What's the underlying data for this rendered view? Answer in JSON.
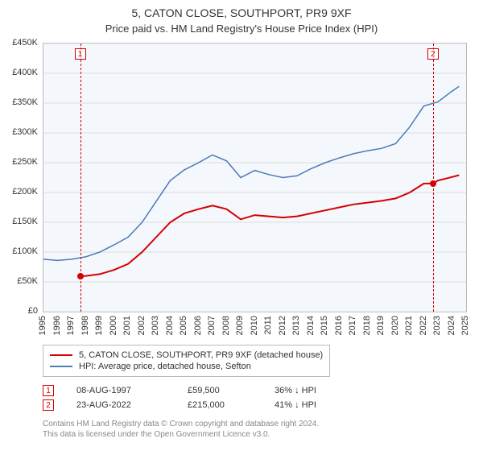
{
  "title": "5, CATON CLOSE, SOUTHPORT, PR9 9XF",
  "subtitle": "Price paid vs. HM Land Registry's House Price Index (HPI)",
  "chart": {
    "background_color": "#f4f7fc",
    "border_color": "#bbbbbb",
    "grid_color": "#dcdcdc",
    "ylim": [
      0,
      450000
    ],
    "ytick_step": 50000,
    "yticks_fmt": [
      "£0",
      "£50K",
      "£100K",
      "£150K",
      "£200K",
      "£250K",
      "£300K",
      "£350K",
      "£400K",
      "£450K"
    ],
    "x_years": [
      1995,
      1996,
      1997,
      1998,
      1999,
      2000,
      2001,
      2002,
      2003,
      2004,
      2005,
      2006,
      2007,
      2008,
      2009,
      2010,
      2011,
      2012,
      2013,
      2014,
      2015,
      2016,
      2017,
      2018,
      2019,
      2020,
      2021,
      2022,
      2023,
      2024,
      2025
    ],
    "series": {
      "price_paid": {
        "color": "#d40000",
        "width": 2,
        "label": "5, CATON CLOSE, SOUTHPORT, PR9 9XF (detached house)",
        "points": [
          [
            1997.6,
            59500
          ],
          [
            1998.0,
            60000
          ],
          [
            1999.0,
            63000
          ],
          [
            2000.0,
            70000
          ],
          [
            2001.0,
            80000
          ],
          [
            2002.0,
            100000
          ],
          [
            2003.0,
            125000
          ],
          [
            2004.0,
            150000
          ],
          [
            2005.0,
            165000
          ],
          [
            2006.0,
            172000
          ],
          [
            2007.0,
            178000
          ],
          [
            2008.0,
            172000
          ],
          [
            2009.0,
            155000
          ],
          [
            2010.0,
            162000
          ],
          [
            2011.0,
            160000
          ],
          [
            2012.0,
            158000
          ],
          [
            2013.0,
            160000
          ],
          [
            2014.0,
            165000
          ],
          [
            2015.0,
            170000
          ],
          [
            2016.0,
            175000
          ],
          [
            2017.0,
            180000
          ],
          [
            2018.0,
            183000
          ],
          [
            2019.0,
            186000
          ],
          [
            2020.0,
            190000
          ],
          [
            2021.0,
            200000
          ],
          [
            2022.0,
            215000
          ],
          [
            2022.65,
            215000
          ],
          [
            2023.0,
            220000
          ],
          [
            2024.0,
            226000
          ],
          [
            2024.5,
            229000
          ]
        ],
        "markers": [
          {
            "n": "1",
            "x": 1997.6,
            "y": 59500
          },
          {
            "n": "2",
            "x": 2022.65,
            "y": 215000
          }
        ]
      },
      "hpi": {
        "color": "#4d7ab8",
        "width": 1.5,
        "label": "HPI: Average price, detached house, Sefton",
        "points": [
          [
            1995.0,
            88000
          ],
          [
            1996.0,
            86000
          ],
          [
            1997.0,
            88000
          ],
          [
            1998.0,
            92000
          ],
          [
            1999.0,
            100000
          ],
          [
            2000.0,
            112000
          ],
          [
            2001.0,
            125000
          ],
          [
            2002.0,
            150000
          ],
          [
            2003.0,
            185000
          ],
          [
            2004.0,
            220000
          ],
          [
            2005.0,
            238000
          ],
          [
            2006.0,
            250000
          ],
          [
            2007.0,
            263000
          ],
          [
            2008.0,
            253000
          ],
          [
            2009.0,
            225000
          ],
          [
            2010.0,
            237000
          ],
          [
            2011.0,
            230000
          ],
          [
            2012.0,
            225000
          ],
          [
            2013.0,
            228000
          ],
          [
            2014.0,
            240000
          ],
          [
            2015.0,
            250000
          ],
          [
            2016.0,
            258000
          ],
          [
            2017.0,
            265000
          ],
          [
            2018.0,
            270000
          ],
          [
            2019.0,
            274000
          ],
          [
            2020.0,
            282000
          ],
          [
            2021.0,
            310000
          ],
          [
            2022.0,
            345000
          ],
          [
            2023.0,
            352000
          ],
          [
            2024.0,
            370000
          ],
          [
            2024.5,
            378000
          ]
        ]
      }
    },
    "vlines": [
      {
        "n": "1",
        "x": 1997.6,
        "color": "#d40000"
      },
      {
        "n": "2",
        "x": 2022.65,
        "color": "#d40000"
      }
    ],
    "vline_label_y_top": 6
  },
  "legend": {
    "border_color": "#bbbbbb",
    "rows": [
      {
        "color": "#d40000",
        "label": "5, CATON CLOSE, SOUTHPORT, PR9 9XF (detached house)"
      },
      {
        "color": "#4d7ab8",
        "label": "HPI: Average price, detached house, Sefton"
      }
    ]
  },
  "transactions": [
    {
      "n": "1",
      "marker_color": "#d40000",
      "date": "08-AUG-1997",
      "price": "£59,500",
      "vs": "36% ↓ HPI"
    },
    {
      "n": "2",
      "marker_color": "#d40000",
      "date": "23-AUG-2022",
      "price": "£215,000",
      "vs": "41% ↓ HPI"
    }
  ],
  "footer": {
    "line1": "Contains HM Land Registry data © Crown copyright and database right 2024.",
    "line2": "This data is licensed under the Open Government Licence v3.0."
  }
}
